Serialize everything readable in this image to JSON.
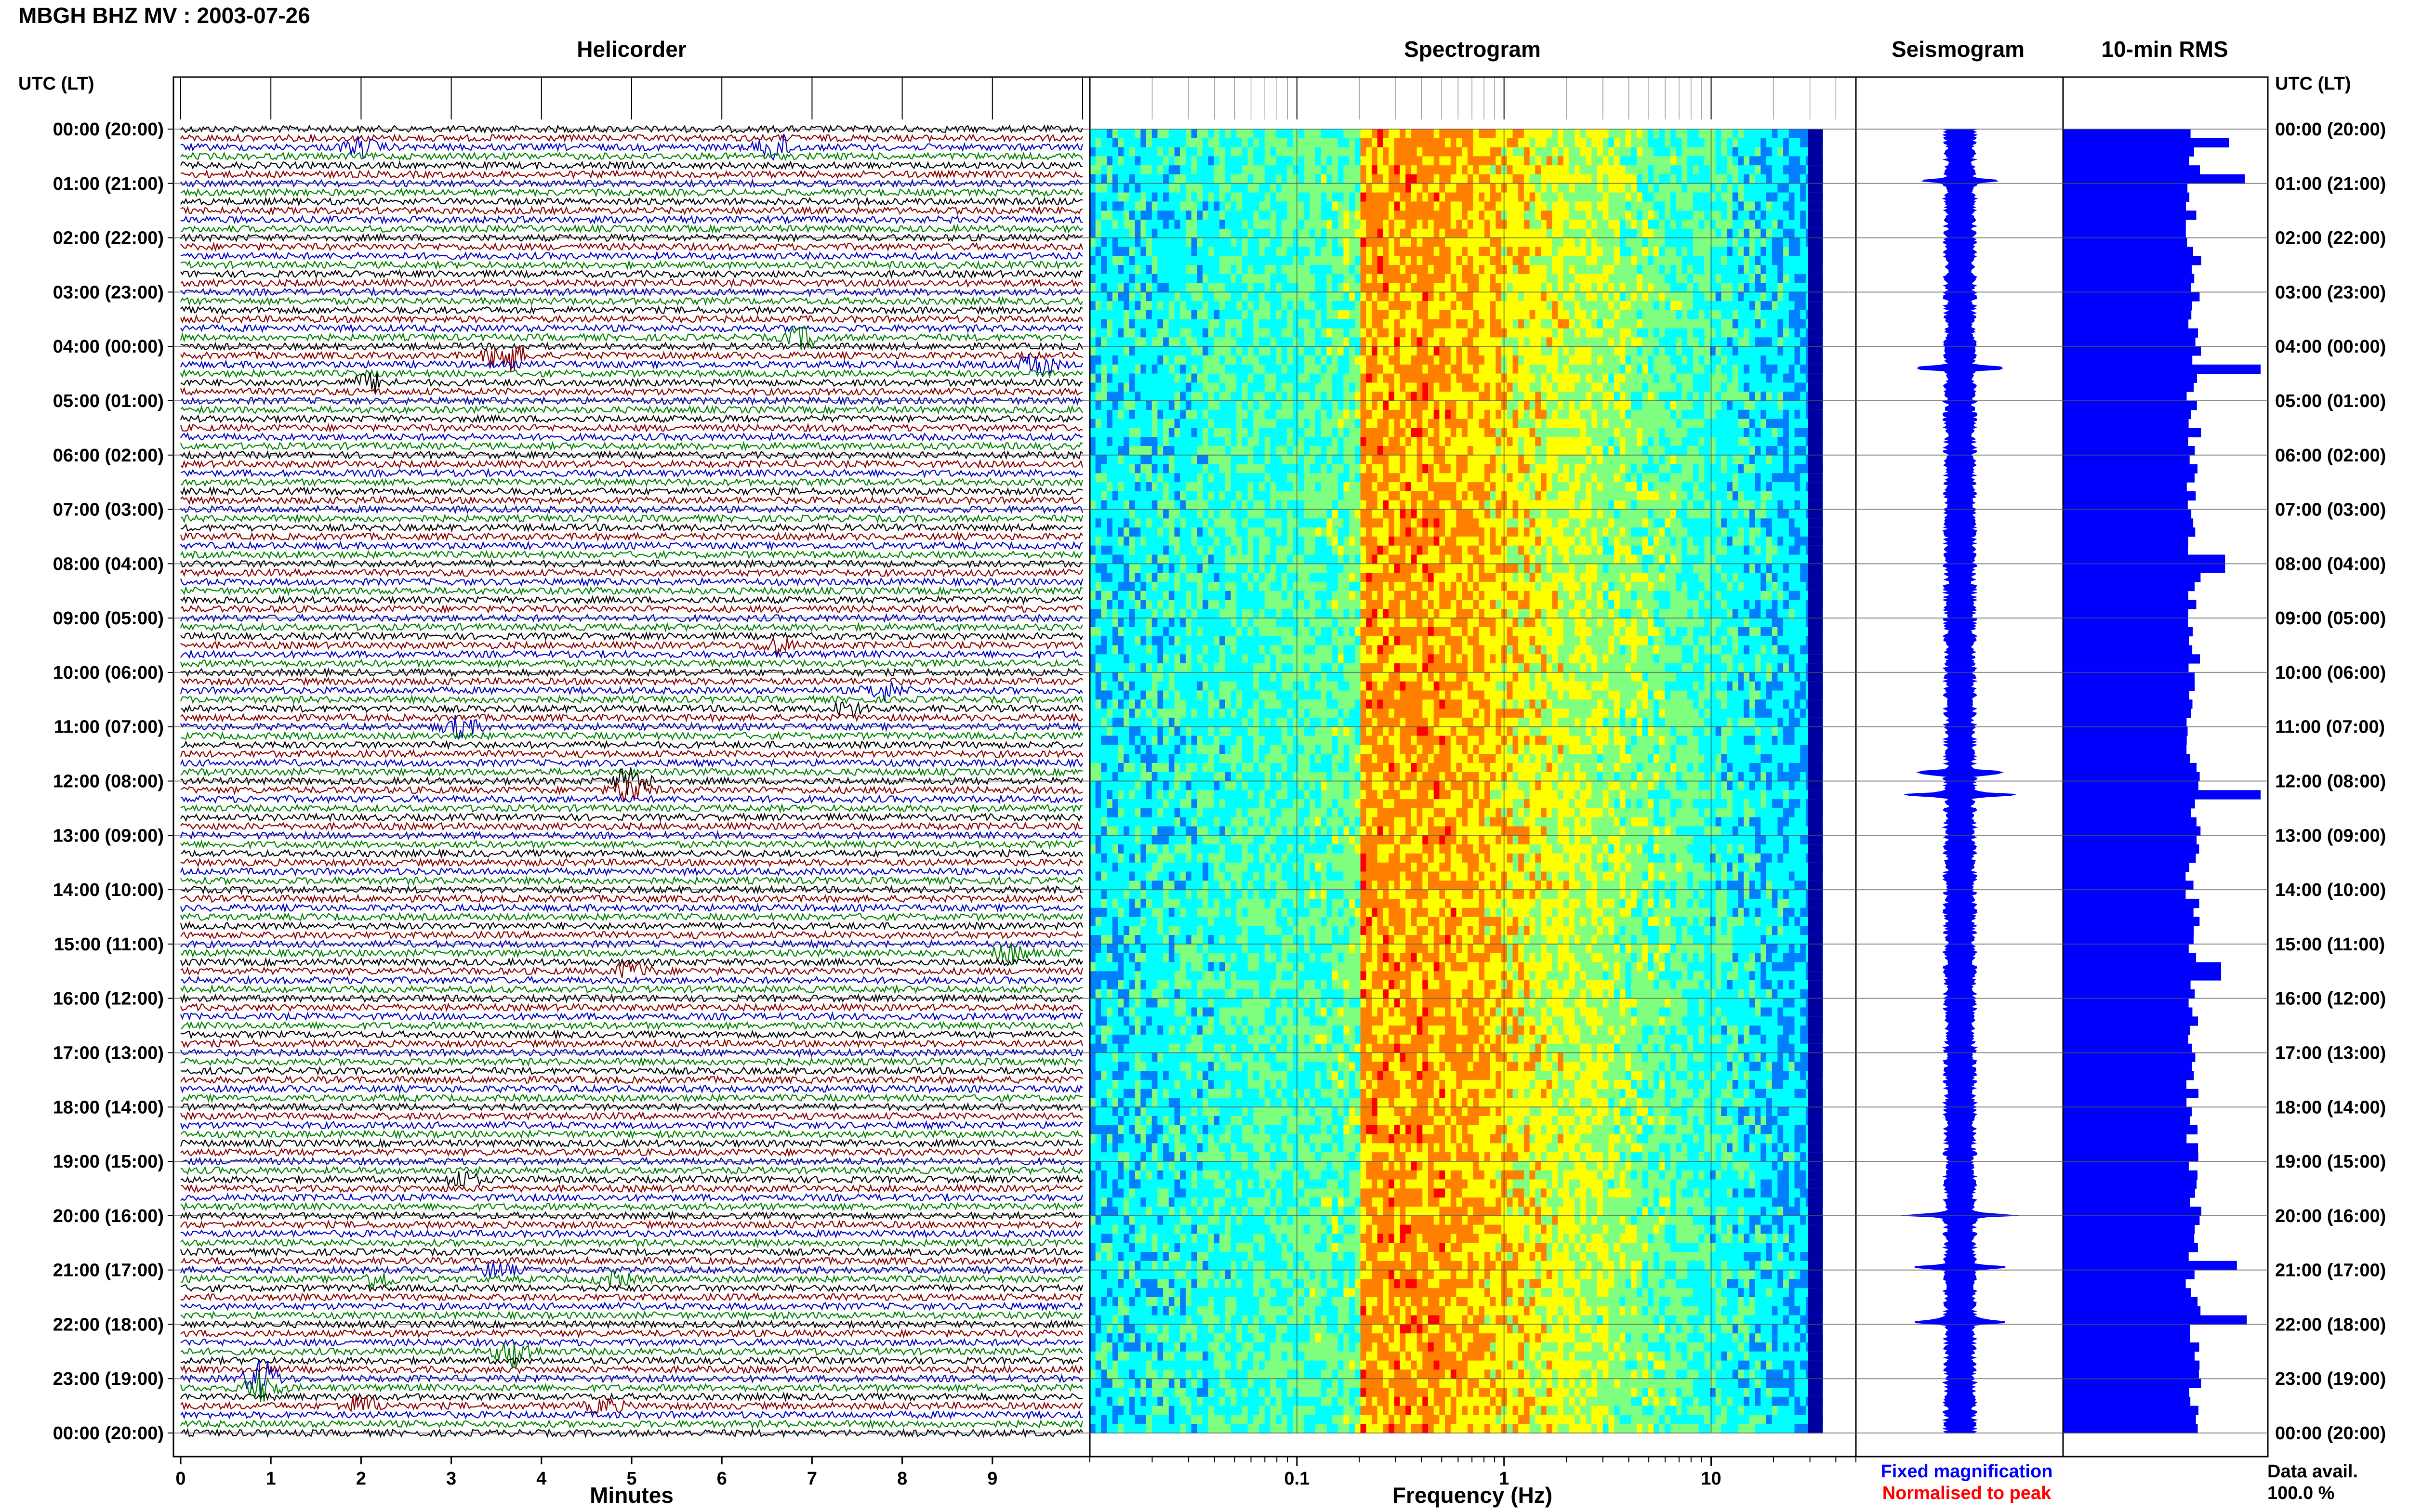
{
  "title": "MBGH BHZ MV : 2003-07-26",
  "panels": {
    "helicorder": "Helicorder",
    "spectrogram": "Spectrogram",
    "seismogram": "Seismogram",
    "rms": "10-min RMS"
  },
  "time_axis_header": "UTC (LT)",
  "time_labels": [
    "00:00 (20:00)",
    "01:00 (21:00)",
    "02:00 (22:00)",
    "03:00 (23:00)",
    "04:00 (00:00)",
    "05:00 (01:00)",
    "06:00 (02:00)",
    "07:00 (03:00)",
    "08:00 (04:00)",
    "09:00 (05:00)",
    "10:00 (06:00)",
    "11:00 (07:00)",
    "12:00 (08:00)",
    "13:00 (09:00)",
    "14:00 (10:00)",
    "15:00 (11:00)",
    "16:00 (12:00)",
    "17:00 (13:00)",
    "18:00 (14:00)",
    "19:00 (15:00)",
    "20:00 (16:00)",
    "21:00 (17:00)",
    "22:00 (18:00)",
    "23:00 (19:00)",
    "00:00 (20:00)"
  ],
  "helicorder_axis": {
    "label": "Minutes",
    "ticks": [
      "0",
      "1",
      "2",
      "3",
      "4",
      "5",
      "6",
      "7",
      "8",
      "9"
    ],
    "xlim": [
      0,
      10
    ]
  },
  "spectrogram_axis": {
    "label": "Frequency (Hz)",
    "ticks": [
      "0.1",
      "1",
      "10"
    ],
    "scale": "log",
    "xlim": [
      0.01,
      50
    ]
  },
  "legend": {
    "fixed": "Fixed magnification",
    "normalised": "Normalised to peak",
    "fixed_color": "#0000ff",
    "normalised_color": "#ff0000"
  },
  "data_availability": {
    "label": "Data avail.",
    "value": "100.0 %"
  },
  "colors": {
    "trace_cycle": [
      "#000000",
      "#8b0000",
      "#0000c8",
      "#008000"
    ],
    "rms_fill": "#0000ff",
    "seismogram_fill": "#0000ff",
    "spectrogram_colormap": [
      "#00007f",
      "#0000ff",
      "#007fff",
      "#00ffff",
      "#7fff7f",
      "#ffff00",
      "#ff7f00",
      "#ff0000"
    ]
  },
  "chart_data": [
    {
      "type": "heatmap",
      "title": "Helicorder",
      "xlabel": "Minutes",
      "xlim": [
        0,
        10
      ],
      "rows_per_hour": 6,
      "hours": 24,
      "events": [
        {
          "row": 2,
          "minute": 2.0,
          "amp": 2.0
        },
        {
          "row": 2,
          "minute": 6.6,
          "amp": 3.0
        },
        {
          "row": 23,
          "minute": 6.9,
          "amp": 2.2
        },
        {
          "row": 25,
          "minute": 3.6,
          "amp": 4.0
        },
        {
          "row": 26,
          "minute": 9.5,
          "amp": 2.5
        },
        {
          "row": 28,
          "minute": 2.1,
          "amp": 1.8
        },
        {
          "row": 57,
          "minute": 6.6,
          "amp": 1.8
        },
        {
          "row": 62,
          "minute": 7.8,
          "amp": 2.0
        },
        {
          "row": 64,
          "minute": 7.4,
          "amp": 1.6
        },
        {
          "row": 66,
          "minute": 3.1,
          "amp": 2.2
        },
        {
          "row": 72,
          "minute": 5.0,
          "amp": 3.0
        },
        {
          "row": 73,
          "minute": 5.0,
          "amp": 3.0
        },
        {
          "row": 91,
          "minute": 9.2,
          "amp": 2.0
        },
        {
          "row": 93,
          "minute": 5.0,
          "amp": 2.0
        },
        {
          "row": 116,
          "minute": 3.1,
          "amp": 1.8
        },
        {
          "row": 126,
          "minute": 3.5,
          "amp": 1.6
        },
        {
          "row": 127,
          "minute": 2.2,
          "amp": 1.8
        },
        {
          "row": 127,
          "minute": 4.8,
          "amp": 1.6
        },
        {
          "row": 135,
          "minute": 3.7,
          "amp": 3.5
        },
        {
          "row": 138,
          "minute": 0.9,
          "amp": 4.0
        },
        {
          "row": 139,
          "minute": 0.9,
          "amp": 3.0
        },
        {
          "row": 141,
          "minute": 2.0,
          "amp": 2.0
        },
        {
          "row": 141,
          "minute": 4.7,
          "amp": 1.6
        }
      ]
    },
    {
      "type": "heatmap",
      "title": "Spectrogram",
      "xlabel": "Frequency (Hz)",
      "x_scale": "log",
      "xlim": [
        0.01,
        50
      ],
      "peak_band_hz": [
        0.2,
        0.5
      ],
      "hours": 24
    },
    {
      "type": "area",
      "title": "Seismogram",
      "hours": 24,
      "spikes_hours": [
        0.95,
        4.4,
        11.85,
        12.25,
        20.0,
        20.95,
        21.95
      ]
    },
    {
      "type": "bar",
      "title": "10-min RMS",
      "orientation": "horizontal",
      "hours": 24,
      "bins_per_hour": 6,
      "peaks": [
        {
          "hour": 0.2,
          "rel": 0.84
        },
        {
          "hour": 0.95,
          "rel": 0.92
        },
        {
          "hour": 4.4,
          "rel": 1.0
        },
        {
          "hour": 8.0,
          "rel": 0.82
        },
        {
          "hour": 12.2,
          "rel": 1.0
        },
        {
          "hour": 15.5,
          "rel": 0.8
        },
        {
          "hour": 20.95,
          "rel": 0.88
        },
        {
          "hour": 21.95,
          "rel": 0.93
        }
      ]
    }
  ]
}
